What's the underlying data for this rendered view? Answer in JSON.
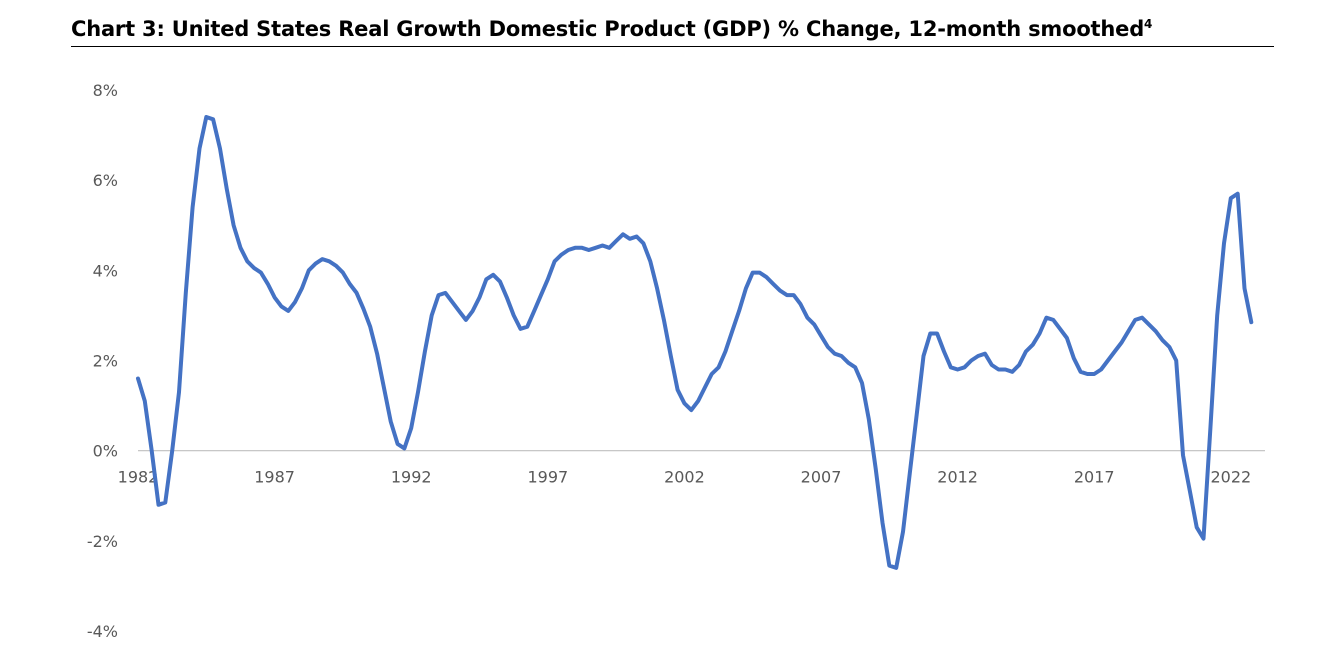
{
  "title": {
    "text": "Chart 3: United States Real Growth Domestic Product (GDP) % Change, 12-month smoothed",
    "footnote": "4"
  },
  "colors": {
    "line": "#4472C4",
    "axis": "#BFBFBF",
    "tick_text": "#595959"
  },
  "chart_data": {
    "type": "line",
    "title": "Chart 3: United States Real Growth Domestic Product (GDP) % Change, 12-month smoothed",
    "xlabel": "",
    "ylabel": "",
    "xlim": [
      1982,
      2023.25
    ],
    "ylim": [
      -4,
      8
    ],
    "y_ticks": [
      8,
      6,
      4,
      2,
      0,
      -2,
      -4
    ],
    "y_tick_labels": [
      "8%",
      "6%",
      "4%",
      "2%",
      "0%",
      "-2%",
      "-4%"
    ],
    "x_ticks": [
      1982,
      1987,
      1992,
      1997,
      2002,
      2007,
      2012,
      2017,
      2022
    ],
    "x_tick_labels": [
      "1982",
      "1987",
      "1992",
      "1997",
      "2002",
      "2007",
      "2012",
      "2017",
      "2022"
    ],
    "grid": false,
    "legend": "none",
    "series": [
      {
        "points": [
          [
            1982.0,
            1.6
          ],
          [
            1982.25,
            1.1
          ],
          [
            1982.5,
            0.0
          ],
          [
            1982.75,
            -1.2
          ],
          [
            1983.0,
            -1.15
          ],
          [
            1983.25,
            0.0
          ],
          [
            1983.5,
            1.3
          ],
          [
            1983.75,
            3.5
          ],
          [
            1984.0,
            5.4
          ],
          [
            1984.25,
            6.7
          ],
          [
            1984.5,
            7.4
          ],
          [
            1984.75,
            7.35
          ],
          [
            1985.0,
            6.7
          ],
          [
            1985.25,
            5.8
          ],
          [
            1985.5,
            5.0
          ],
          [
            1985.75,
            4.5
          ],
          [
            1986.0,
            4.2
          ],
          [
            1986.25,
            4.05
          ],
          [
            1986.5,
            3.95
          ],
          [
            1986.75,
            3.7
          ],
          [
            1987.0,
            3.4
          ],
          [
            1987.25,
            3.2
          ],
          [
            1987.5,
            3.1
          ],
          [
            1987.75,
            3.3
          ],
          [
            1988.0,
            3.6
          ],
          [
            1988.25,
            4.0
          ],
          [
            1988.5,
            4.15
          ],
          [
            1988.75,
            4.25
          ],
          [
            1989.0,
            4.2
          ],
          [
            1989.25,
            4.1
          ],
          [
            1989.5,
            3.95
          ],
          [
            1989.75,
            3.7
          ],
          [
            1990.0,
            3.5
          ],
          [
            1990.25,
            3.15
          ],
          [
            1990.5,
            2.75
          ],
          [
            1990.75,
            2.15
          ],
          [
            1991.0,
            1.4
          ],
          [
            1991.25,
            0.65
          ],
          [
            1991.5,
            0.15
          ],
          [
            1991.75,
            0.05
          ],
          [
            1992.0,
            0.5
          ],
          [
            1992.25,
            1.3
          ],
          [
            1992.5,
            2.2
          ],
          [
            1992.75,
            3.0
          ],
          [
            1993.0,
            3.45
          ],
          [
            1993.25,
            3.5
          ],
          [
            1993.5,
            3.3
          ],
          [
            1993.75,
            3.1
          ],
          [
            1994.0,
            2.9
          ],
          [
            1994.25,
            3.1
          ],
          [
            1994.5,
            3.4
          ],
          [
            1994.75,
            3.8
          ],
          [
            1995.0,
            3.9
          ],
          [
            1995.25,
            3.75
          ],
          [
            1995.5,
            3.4
          ],
          [
            1995.75,
            3.0
          ],
          [
            1996.0,
            2.7
          ],
          [
            1996.25,
            2.75
          ],
          [
            1996.5,
            3.1
          ],
          [
            1996.75,
            3.45
          ],
          [
            1997.0,
            3.8
          ],
          [
            1997.25,
            4.2
          ],
          [
            1997.5,
            4.35
          ],
          [
            1997.75,
            4.45
          ],
          [
            1998.0,
            4.5
          ],
          [
            1998.25,
            4.5
          ],
          [
            1998.5,
            4.45
          ],
          [
            1998.75,
            4.5
          ],
          [
            1999.0,
            4.55
          ],
          [
            1999.25,
            4.5
          ],
          [
            1999.5,
            4.65
          ],
          [
            1999.75,
            4.8
          ],
          [
            2000.0,
            4.7
          ],
          [
            2000.25,
            4.75
          ],
          [
            2000.5,
            4.6
          ],
          [
            2000.75,
            4.2
          ],
          [
            2001.0,
            3.6
          ],
          [
            2001.25,
            2.9
          ],
          [
            2001.5,
            2.1
          ],
          [
            2001.75,
            1.35
          ],
          [
            2002.0,
            1.05
          ],
          [
            2002.25,
            0.9
          ],
          [
            2002.5,
            1.1
          ],
          [
            2002.75,
            1.4
          ],
          [
            2003.0,
            1.7
          ],
          [
            2003.25,
            1.85
          ],
          [
            2003.5,
            2.2
          ],
          [
            2003.75,
            2.65
          ],
          [
            2004.0,
            3.1
          ],
          [
            2004.25,
            3.6
          ],
          [
            2004.5,
            3.95
          ],
          [
            2004.75,
            3.95
          ],
          [
            2005.0,
            3.85
          ],
          [
            2005.25,
            3.7
          ],
          [
            2005.5,
            3.55
          ],
          [
            2005.75,
            3.45
          ],
          [
            2006.0,
            3.45
          ],
          [
            2006.25,
            3.25
          ],
          [
            2006.5,
            2.95
          ],
          [
            2006.75,
            2.8
          ],
          [
            2007.0,
            2.55
          ],
          [
            2007.25,
            2.3
          ],
          [
            2007.5,
            2.15
          ],
          [
            2007.75,
            2.1
          ],
          [
            2008.0,
            1.95
          ],
          [
            2008.25,
            1.85
          ],
          [
            2008.5,
            1.5
          ],
          [
            2008.75,
            0.7
          ],
          [
            2009.0,
            -0.4
          ],
          [
            2009.25,
            -1.6
          ],
          [
            2009.5,
            -2.55
          ],
          [
            2009.75,
            -2.6
          ],
          [
            2010.0,
            -1.8
          ],
          [
            2010.25,
            -0.5
          ],
          [
            2010.5,
            0.8
          ],
          [
            2010.75,
            2.1
          ],
          [
            2011.0,
            2.6
          ],
          [
            2011.25,
            2.6
          ],
          [
            2011.5,
            2.2
          ],
          [
            2011.75,
            1.85
          ],
          [
            2012.0,
            1.8
          ],
          [
            2012.25,
            1.85
          ],
          [
            2012.5,
            2.0
          ],
          [
            2012.75,
            2.1
          ],
          [
            2013.0,
            2.15
          ],
          [
            2013.25,
            1.9
          ],
          [
            2013.5,
            1.8
          ],
          [
            2013.75,
            1.8
          ],
          [
            2014.0,
            1.75
          ],
          [
            2014.25,
            1.9
          ],
          [
            2014.5,
            2.2
          ],
          [
            2014.75,
            2.35
          ],
          [
            2015.0,
            2.6
          ],
          [
            2015.25,
            2.95
          ],
          [
            2015.5,
            2.9
          ],
          [
            2015.75,
            2.7
          ],
          [
            2016.0,
            2.5
          ],
          [
            2016.25,
            2.05
          ],
          [
            2016.5,
            1.75
          ],
          [
            2016.75,
            1.7
          ],
          [
            2017.0,
            1.7
          ],
          [
            2017.25,
            1.8
          ],
          [
            2017.5,
            2.0
          ],
          [
            2017.75,
            2.2
          ],
          [
            2018.0,
            2.4
          ],
          [
            2018.25,
            2.65
          ],
          [
            2018.5,
            2.9
          ],
          [
            2018.75,
            2.95
          ],
          [
            2019.0,
            2.8
          ],
          [
            2019.25,
            2.65
          ],
          [
            2019.5,
            2.45
          ],
          [
            2019.75,
            2.3
          ],
          [
            2020.0,
            2.0
          ],
          [
            2020.25,
            -0.1
          ],
          [
            2020.5,
            -0.9
          ],
          [
            2020.75,
            -1.7
          ],
          [
            2021.0,
            -1.95
          ],
          [
            2021.25,
            0.5
          ],
          [
            2021.5,
            3.0
          ],
          [
            2021.75,
            4.6
          ],
          [
            2022.0,
            5.6
          ],
          [
            2022.25,
            5.7
          ],
          [
            2022.5,
            3.6
          ],
          [
            2022.75,
            2.85
          ]
        ]
      }
    ]
  }
}
